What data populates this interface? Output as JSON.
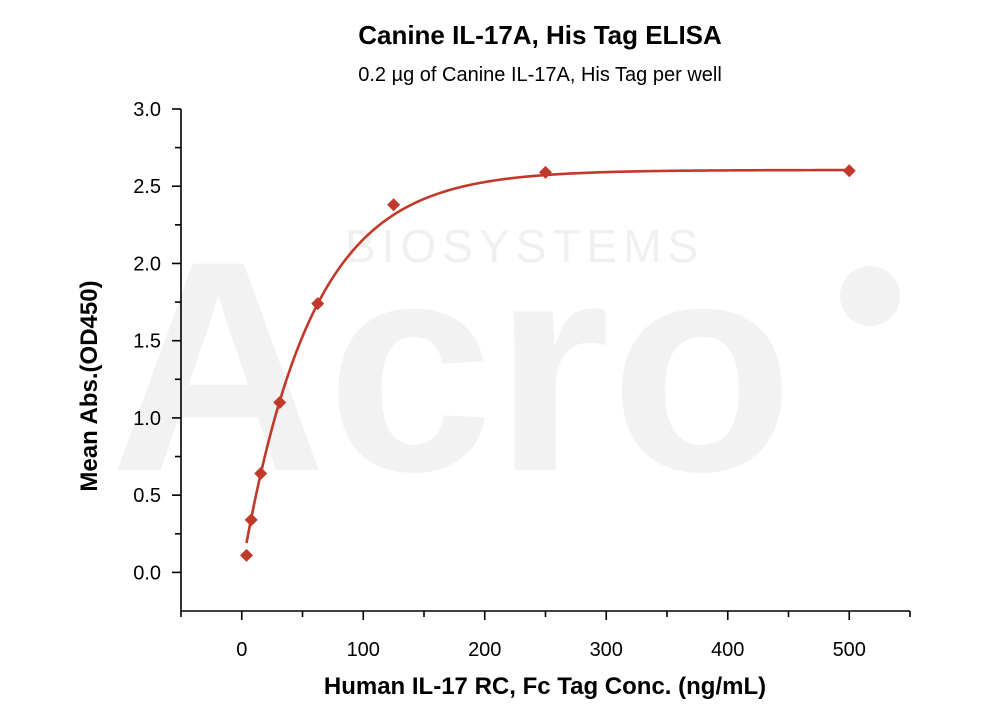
{
  "chart_data": {
    "type": "scatter",
    "title": "Canine IL-17A, His Tag ELISA",
    "subtitle": "0.2 µg of Canine IL-17A, His Tag per well",
    "xlabel": "Human IL-17 RC, Fc Tag Conc. (ng/mL)",
    "ylabel": "Mean Abs.(OD450)",
    "xlim": [
      -50,
      550
    ],
    "ylim": [
      -0.25,
      3.0
    ],
    "xticks": [
      0,
      100,
      200,
      300,
      400,
      500
    ],
    "yticks": [
      0.0,
      0.5,
      1.0,
      1.5,
      2.0,
      2.5,
      3.0
    ],
    "x_tick_labels": [
      "0",
      "100",
      "200",
      "300",
      "400",
      "500"
    ],
    "y_tick_labels": [
      "0.0",
      "0.5",
      "1.0",
      "1.5",
      "2.0",
      "2.5",
      "3.0"
    ],
    "grid": false,
    "series": [
      {
        "color": "#c0392b",
        "marker": "diamond",
        "x": [
          3.9,
          7.8,
          15.6,
          31.25,
          62.5,
          125,
          250,
          500
        ],
        "y": [
          0.11,
          0.34,
          0.64,
          1.1,
          1.74,
          2.38,
          2.59,
          2.6
        ],
        "fit_curve": true
      }
    ]
  }
}
